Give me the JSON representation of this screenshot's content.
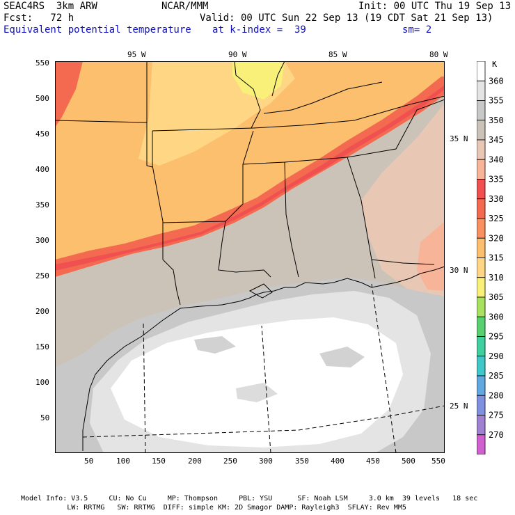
{
  "header": {
    "model_name": "SEAC4RS  3km ARW",
    "center": "NCAR/MMM",
    "init": "Init: 00 UTC Thu 19 Sep 13",
    "fcst": "Fcst:   72 h",
    "valid": "Valid: 00 UTC Sun 22 Sep 13 (19 CDT Sat 21 Sep 13)",
    "field": "Equivalent potential temperature",
    "level": "at k-index =  39",
    "smoothing": "sm= 2"
  },
  "axes": {
    "x_ticks": [
      "50",
      "100",
      "150",
      "200",
      "250",
      "300",
      "350",
      "400",
      "450",
      "500",
      "550"
    ],
    "y_ticks": [
      "550",
      "500",
      "450",
      "400",
      "350",
      "300",
      "250",
      "200",
      "150",
      "100",
      "50"
    ],
    "lon_labels": [
      "95 W",
      "90 W",
      "85 W",
      "80 W"
    ],
    "lat_labels": [
      "35 N",
      "30 N",
      "25 N"
    ]
  },
  "colorbar": {
    "unit": "K",
    "levels": [
      "360",
      "355",
      "350",
      "345",
      "340",
      "335",
      "330",
      "325",
      "320",
      "315",
      "310",
      "305",
      "300",
      "295",
      "290",
      "285",
      "280",
      "275",
      "270"
    ],
    "colors": [
      "#ffffff",
      "#e4e4e4",
      "#c8c8c8",
      "#ccc3b8",
      "#e8c8b4",
      "#f8b498",
      "#f05050",
      "#f46a50",
      "#f89060",
      "#fbbf6e",
      "#ffd784",
      "#f8f078",
      "#a8e060",
      "#58d070",
      "#40d0a0",
      "#40c8c8",
      "#60a8e0",
      "#8090e0",
      "#a080d0",
      "#d060d0"
    ]
  },
  "footer": {
    "line1": "Model Info: V3.5     CU: No Cu     MP: Thompson     PBL: YSU      SF: Noah LSM     3.0 km  39 levels   18 sec",
    "line2": "           LW: RRTMG   SW: RRTMG  DIFF: simple KM: 2D Smagor DAMP: Rayleigh3  SFLAY: Rev MM5"
  }
}
